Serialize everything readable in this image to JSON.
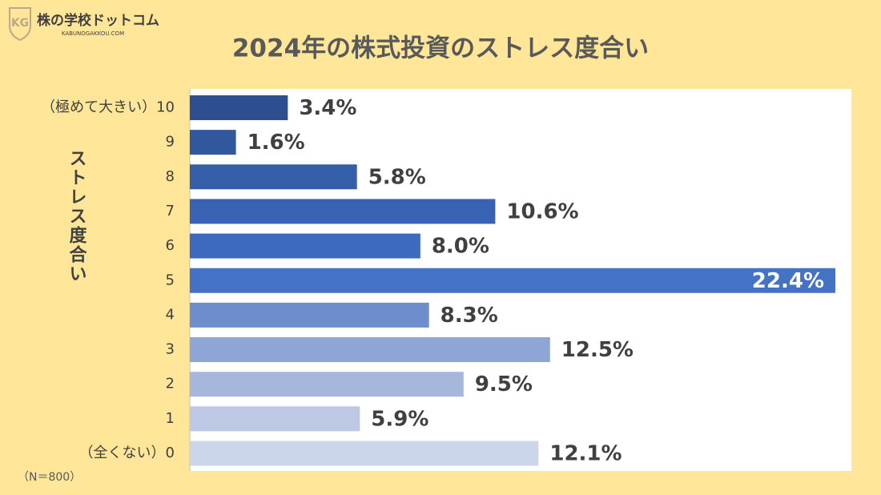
{
  "brand": {
    "name": "株の学校ドットコム",
    "url": "KABUNOGAKKOU.COM"
  },
  "note": "（N＝800）",
  "chart_data": {
    "type": "bar",
    "orientation": "horizontal",
    "title": "2024年の株式投資のストレス度合い",
    "y_label": "ストレス度合い",
    "categories": [
      "（極めて大きい）10",
      "9",
      "8",
      "7",
      "6",
      "5",
      "4",
      "3",
      "2",
      "1",
      "（全くない）0"
    ],
    "values": [
      3.4,
      1.6,
      5.8,
      10.6,
      8.0,
      22.4,
      8.3,
      12.5,
      9.5,
      5.9,
      12.1
    ],
    "value_labels": [
      "3.4%",
      "1.6%",
      "5.8%",
      "10.6%",
      "8.0%",
      "22.4%",
      "8.3%",
      "12.5%",
      "9.5%",
      "5.9%",
      "12.1%"
    ],
    "colors": [
      "#2e4f8f",
      "#31579c",
      "#345ea8",
      "#3863b2",
      "#3d6abc",
      "#4472c4",
      "#6d8dcd",
      "#8ea5d5",
      "#a7b7dc",
      "#bcc8e4",
      "#ccd5ea"
    ]
  }
}
